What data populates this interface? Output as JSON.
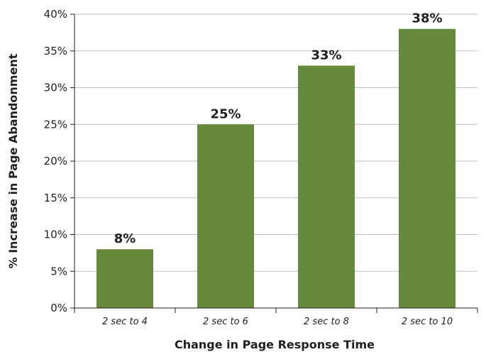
{
  "chart_data": {
    "type": "bar",
    "categories": [
      "2 sec to 4",
      "2 sec to 6",
      "2 sec to 8",
      "2 sec to 10"
    ],
    "values": [
      8,
      25,
      33,
      38
    ],
    "data_labels": [
      "8%",
      "25%",
      "33%",
      "38%"
    ],
    "title": "",
    "xlabel": "Change in Page Response Time",
    "ylabel": "% Increase in Page Abandonment",
    "ylim": [
      0,
      40
    ],
    "yticks": [
      0,
      5,
      10,
      15,
      20,
      25,
      30,
      35,
      40
    ],
    "ytick_labels": [
      "0%",
      "5%",
      "10%",
      "15%",
      "20%",
      "25%",
      "30%",
      "35%",
      "40%"
    ],
    "grid": true,
    "legend": "none",
    "bar_color": "#668a3c",
    "grid_color": "#bcbdc0",
    "axis_color": "#231f20"
  }
}
